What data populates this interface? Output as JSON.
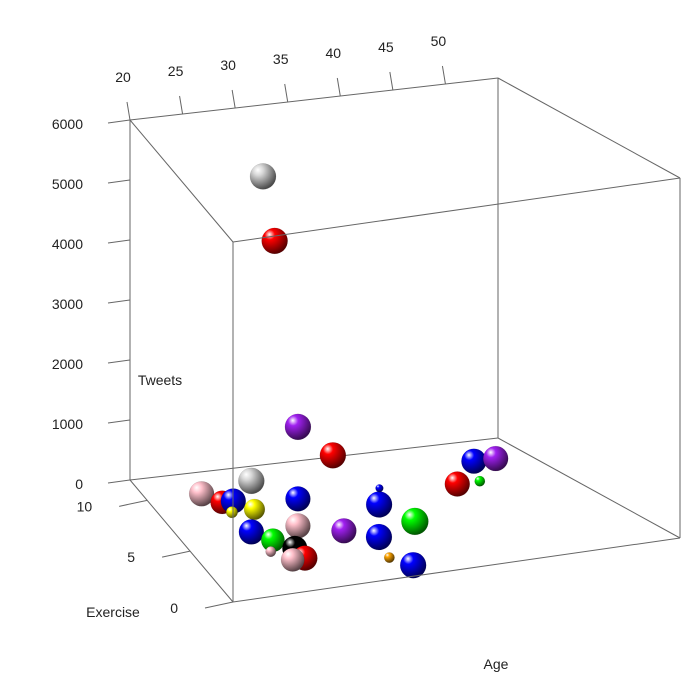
{
  "chart_data": {
    "type": "scatter",
    "projection": "3d",
    "title": "",
    "axes": {
      "x": {
        "label": "Age",
        "ticks": [
          20,
          25,
          30,
          35,
          40,
          45,
          50
        ]
      },
      "y": {
        "label": "Tweets",
        "ticks": [
          0,
          1000,
          2000,
          3000,
          4000,
          5000,
          6000
        ]
      },
      "z": {
        "label": "Exercise",
        "ticks": [
          0,
          5,
          10
        ]
      }
    },
    "grid": false,
    "points": [
      {
        "x": 27,
        "y": 5900,
        "z": 6,
        "size": 5.0,
        "color": "#d8d8d8"
      },
      {
        "x": 28,
        "y": 4800,
        "z": 6,
        "size": 5.0,
        "color": "#ff0000"
      },
      {
        "x": 30,
        "y": 1650,
        "z": 6,
        "size": 5.0,
        "color": "#a020f0"
      },
      {
        "x": 33,
        "y": 1100,
        "z": 6,
        "size": 5.0,
        "color": "#ff0000"
      },
      {
        "x": 26,
        "y": 850,
        "z": 6,
        "size": 5.0,
        "color": "#d8d8d8"
      },
      {
        "x": 30,
        "y": 450,
        "z": 6,
        "size": 4.8,
        "color": "#0000ff"
      },
      {
        "x": 37,
        "y": 450,
        "z": 6,
        "size": 1.5,
        "color": "#0000ff"
      },
      {
        "x": 46,
        "y": 0,
        "z": 8,
        "size": 4.8,
        "color": "#ff0000"
      },
      {
        "x": 50,
        "y": 0,
        "z": 10,
        "size": 4.8,
        "color": "#0000ff"
      },
      {
        "x": 48,
        "y": 0,
        "z": 8,
        "size": 2.0,
        "color": "#00ff00"
      },
      {
        "x": 52,
        "y": 0,
        "z": 10,
        "size": 4.8,
        "color": "#a020f0"
      },
      {
        "x": 38,
        "y": 0,
        "z": 7,
        "size": 5.0,
        "color": "#0000ff"
      },
      {
        "x": 39,
        "y": 0,
        "z": 5,
        "size": 5.2,
        "color": "#00ff00"
      },
      {
        "x": 33,
        "y": 0,
        "z": 5,
        "size": 4.8,
        "color": "#a020f0"
      },
      {
        "x": 35,
        "y": 0,
        "z": 4,
        "size": 5.0,
        "color": "#0000ff"
      },
      {
        "x": 35,
        "y": 0,
        "z": 1,
        "size": 5.0,
        "color": "#0000ff"
      },
      {
        "x": 34,
        "y": 0,
        "z": 2,
        "size": 2.0,
        "color": "#ffa500"
      },
      {
        "x": 30,
        "y": 0,
        "z": 6,
        "size": 4.8,
        "color": "#ffc0cb"
      },
      {
        "x": 25,
        "y": 0,
        "z": 10,
        "size": 4.8,
        "color": "#ffc0cb"
      },
      {
        "x": 26,
        "y": 0,
        "z": 9,
        "size": 4.5,
        "color": "#ff0000"
      },
      {
        "x": 27,
        "y": 0,
        "z": 9,
        "size": 4.8,
        "color": "#0000ff"
      },
      {
        "x": 26,
        "y": 0,
        "z": 8,
        "size": 2.2,
        "color": "#ffff00"
      },
      {
        "x": 28,
        "y": 0,
        "z": 8,
        "size": 4.0,
        "color": "#ffff00"
      },
      {
        "x": 26,
        "y": 0,
        "z": 6,
        "size": 4.8,
        "color": "#0000ff"
      },
      {
        "x": 27,
        "y": 0,
        "z": 5,
        "size": 4.5,
        "color": "#00ff00"
      },
      {
        "x": 28,
        "y": 0,
        "z": 4,
        "size": 4.8,
        "color": "#000000"
      },
      {
        "x": 28,
        "y": 0,
        "z": 3,
        "size": 4.8,
        "color": "#ff0000"
      },
      {
        "x": 27,
        "y": 0,
        "z": 3,
        "size": 4.5,
        "color": "#ffc0cb"
      },
      {
        "x": 26,
        "y": 0,
        "z": 4,
        "size": 2.0,
        "color": "#ffc0cb"
      }
    ]
  }
}
